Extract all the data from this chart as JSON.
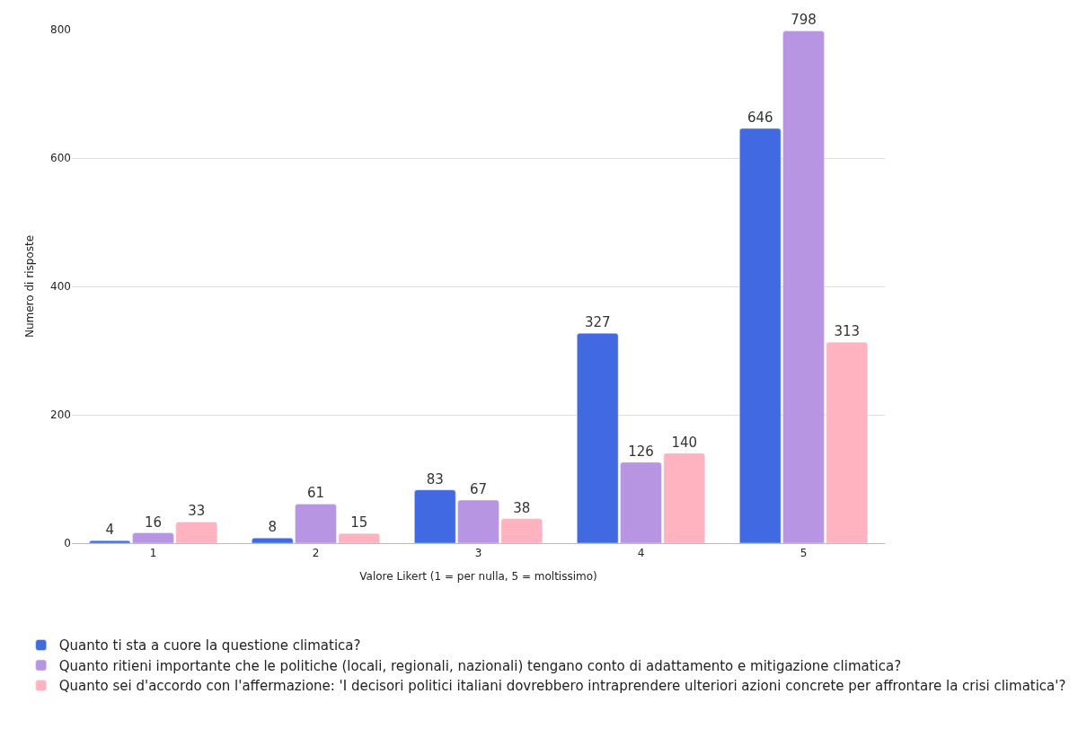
{
  "chart_data": {
    "type": "bar",
    "xlabel": "Valore Likert (1 = per nulla, 5 = moltissimo)",
    "ylabel": "Numero di risposte",
    "categories": [
      "1",
      "2",
      "3",
      "4",
      "5"
    ],
    "series": [
      {
        "name": "Quanto ti sta a cuore la questione climatica?",
        "color": "#4169e1",
        "values": [
          4,
          8,
          83,
          327,
          646
        ]
      },
      {
        "name": "Quanto ritieni importante che le politiche (locali, regionali, nazionali) tengano conto di adattamento e mitigazione climatica?",
        "color": "#b795e3",
        "values": [
          16,
          61,
          67,
          126,
          798
        ]
      },
      {
        "name": "Quanto sei d'accordo con l'affermazione: 'I decisori politici italiani dovrebbero intraprendere ulteriori azioni concrete per affrontare la crisi climatica'?",
        "color": "#ffb3c0",
        "values": [
          33,
          15,
          38,
          140,
          313
        ]
      }
    ],
    "ylim": [
      0,
      800
    ],
    "yticks": [
      0,
      200,
      400,
      600,
      800
    ],
    "grid": "y",
    "legend": "bottom",
    "data_labels": true
  }
}
